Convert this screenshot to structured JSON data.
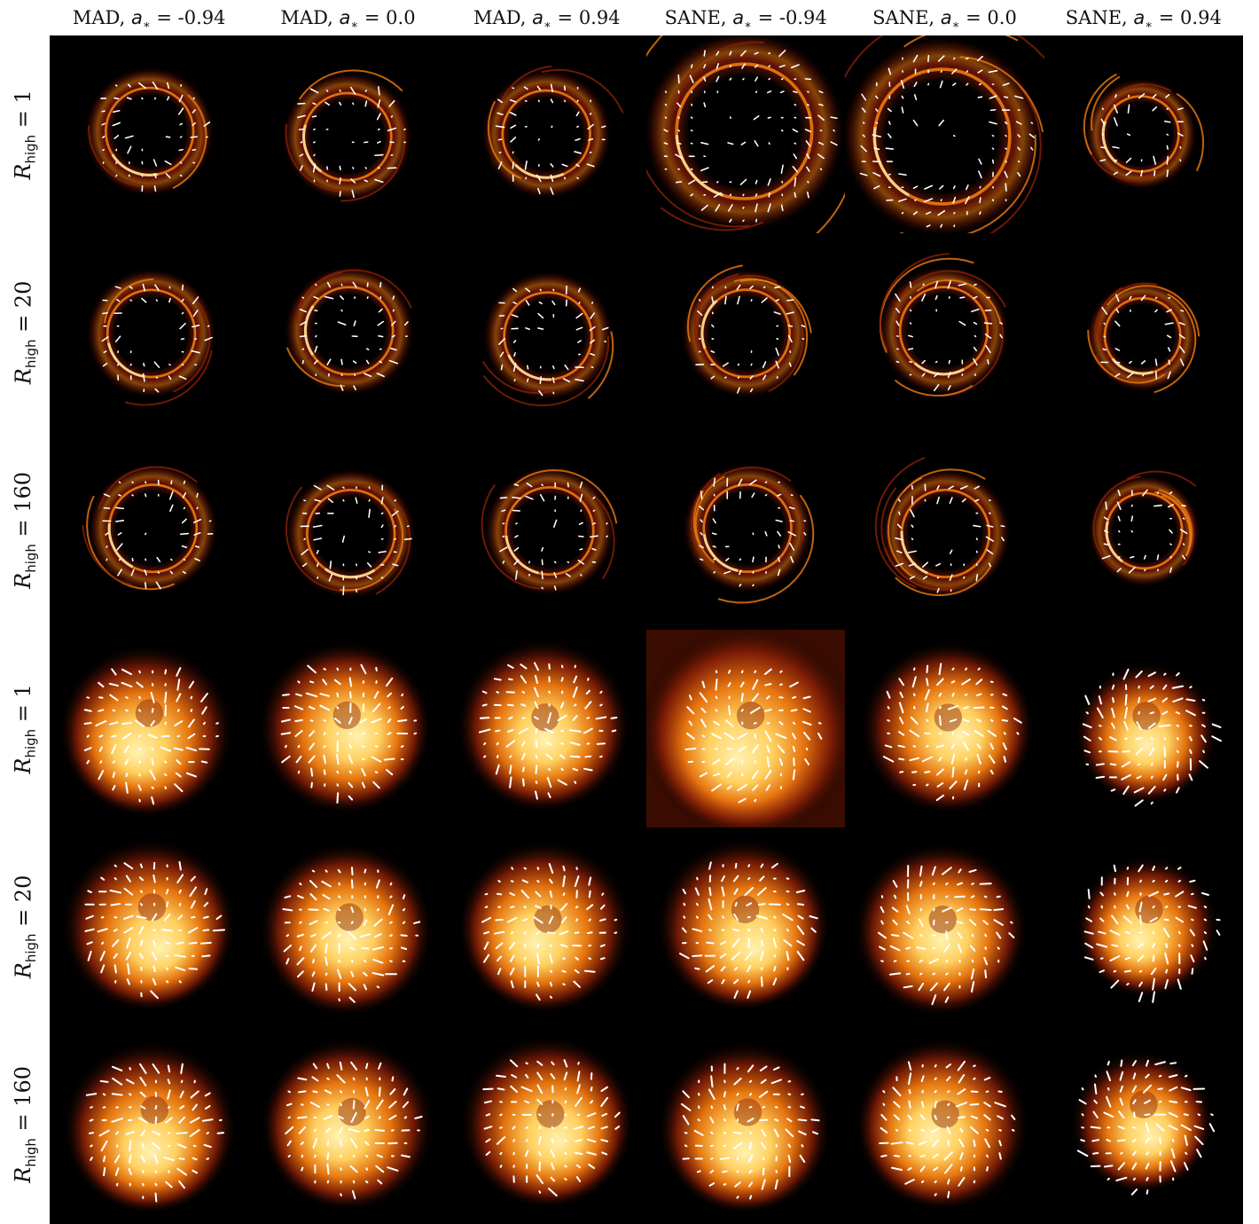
{
  "columns": [
    {
      "prefix": "MAD, ",
      "spin": "-0.94"
    },
    {
      "prefix": "MAD, ",
      "spin": "0.0"
    },
    {
      "prefix": "MAD, ",
      "spin": "0.94"
    },
    {
      "prefix": "SANE, ",
      "spin": "-0.94"
    },
    {
      "prefix": "SANE, ",
      "spin": "0.0"
    },
    {
      "prefix": "SANE, ",
      "spin": "0.94"
    }
  ],
  "spin_symbol": "a",
  "spin_sub": "∗",
  "rows": [
    {
      "symbol": "R",
      "sub": "high",
      "value": "1",
      "style": "ring"
    },
    {
      "symbol": "R",
      "sub": "high",
      "value": "20",
      "style": "ring"
    },
    {
      "symbol": "R",
      "sub": "high",
      "value": "160",
      "style": "ring"
    },
    {
      "symbol": "R",
      "sub": "high",
      "value": "1",
      "style": "blurred"
    },
    {
      "symbol": "R",
      "sub": "high",
      "value": "20",
      "style": "blurred"
    },
    {
      "symbol": "R",
      "sub": "high",
      "value": "160",
      "style": "blurred"
    }
  ],
  "colormap": {
    "dark": "#000000",
    "mid": "#8a1f06",
    "bright": "#f07a10",
    "peak": "#fff2b0"
  },
  "tick_color": "#ffffff"
}
